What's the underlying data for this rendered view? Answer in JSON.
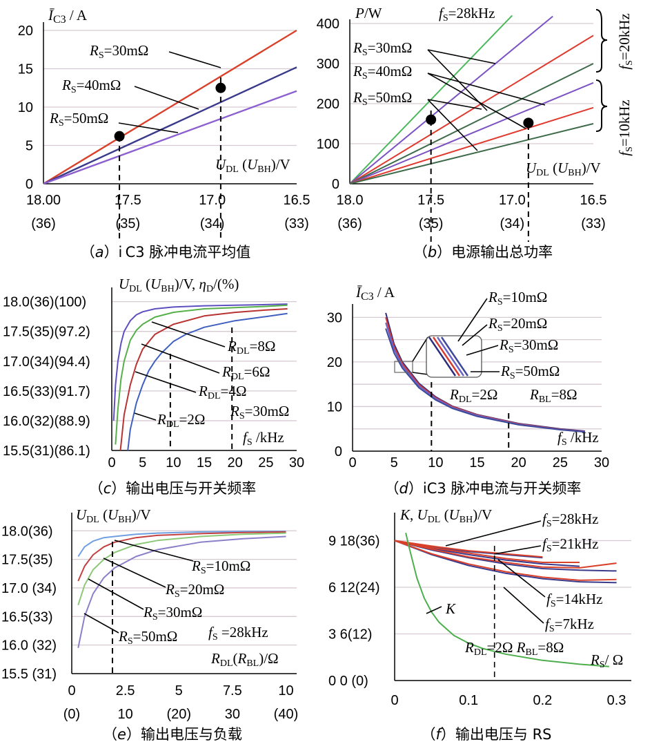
{
  "panels": [
    {
      "id": "a",
      "caption_letter": "a",
      "caption_text": "i C3 脉冲电流平均值",
      "ylabel": "Ī C3 / A",
      "xlabel": "UDL (UBH)/V",
      "xticks": [
        "18.00",
        "17.5",
        "17.0",
        "16.5"
      ],
      "xticks2": [
        "(36)",
        "(35)",
        "(34)",
        "(33)"
      ],
      "yticks": [
        "0",
        "5",
        "10",
        "15",
        "20"
      ],
      "annotations": [
        "RS=30mΩ",
        "RS=40mΩ",
        "RS=50mΩ"
      ]
    },
    {
      "id": "b",
      "caption_letter": "b",
      "caption_text": "电源输出总功率",
      "ylabel": "P/W",
      "xlabel": "UDL (UBH)/V",
      "xticks": [
        "18.0",
        "17.5",
        "17.0",
        "16.5"
      ],
      "xticks2": [
        "(36)",
        "(35)",
        "(34)",
        "(33)"
      ],
      "yticks": [
        "0",
        "100",
        "200",
        "300",
        "400"
      ],
      "annotations": [
        "fS=28kHz",
        "RS=30mΩ",
        "RS=40mΩ",
        "RS=50mΩ",
        "fS=20kHz",
        "fS=10kHz"
      ]
    },
    {
      "id": "c",
      "caption_letter": "c",
      "caption_text": "输出电压与开关频率",
      "ylabel": "UDL (UBH)/V, ηD/(%)",
      "xlabel": "fS /kHz",
      "xticks": [
        "0",
        "5",
        "10",
        "15",
        "20",
        "25",
        "30"
      ],
      "yticks": [
        "15.5(31)(86.1)",
        "16.0(32)(88.9)",
        "16.5(33)(91.7)",
        "17.0(34)(94.4)",
        "17.5(35)(97.2)",
        "18.0(36)(100)"
      ],
      "annotations": [
        "RDL=8Ω",
        "RDL=6Ω",
        "RDL=4Ω",
        "RDL=2Ω",
        "RS=30mΩ"
      ]
    },
    {
      "id": "d",
      "caption_letter": "d",
      "caption_text": "iC3 脉冲电流与开关频率",
      "ylabel": "Ī C3 / A",
      "xlabel": "fS /kHz",
      "xticks": [
        "0",
        "5",
        "10",
        "15",
        "20",
        "25",
        "30"
      ],
      "yticks": [
        "0",
        "10",
        "20",
        "30"
      ],
      "annotations": [
        "RS=10mΩ",
        "RS=20mΩ",
        "RS=30mΩ",
        "RS=50mΩ",
        "RDL=2Ω",
        "RBL=8Ω"
      ]
    },
    {
      "id": "e",
      "caption_letter": "e",
      "caption_text": "输出电压与负载",
      "ylabel": "UDL (UBH)/V",
      "xlabel": "RDL (RBL)/Ω",
      "xticks": [
        "0",
        "2.5",
        "5",
        "7.5",
        "10"
      ],
      "xticks2": [
        "(0)",
        "10",
        "(20)",
        "30",
        "(40)"
      ],
      "yticks": [
        "15.5 (31)",
        "16.0 (32)",
        "16.5(33)",
        "17.0 (34)",
        "17.5(35)",
        "18.0(36)"
      ],
      "annotations": [
        "RS=10mΩ",
        "RS=20mΩ",
        "RS=30mΩ",
        "RS=50mΩ",
        "fS =28kHz"
      ]
    },
    {
      "id": "f",
      "caption_letter": "f",
      "caption_text": "输出电压与 RS",
      "ylabel": "K, UDL (UBH)/V",
      "xlabel": "RS / Ω",
      "xticks": [
        "0",
        "0.1",
        "0.2",
        "0.3"
      ],
      "yticks": [
        "0 0 (0)",
        "3   6(12)",
        "6 12(24)",
        "9 18(36)"
      ],
      "annotations": [
        "fS=28kHz",
        "fS=21kHz",
        "fS=14kHz",
        "fS=7kHz",
        "K",
        "RDL=2Ω RBL=8Ω"
      ]
    }
  ],
  "chart_data": [
    {
      "panel": "a",
      "type": "line",
      "xlabel": "UDL(UBH)/V",
      "ylabel": "ĪC3/A",
      "xlim": [
        18.0,
        16.5
      ],
      "ylim": [
        0,
        20
      ],
      "grid": true,
      "series": [
        {
          "name": "RS=30mΩ",
          "color": "#d9412b",
          "x": [
            18.0,
            16.5
          ],
          "y": [
            0,
            20
          ]
        },
        {
          "name": "RS=40mΩ",
          "color": "#3a3a8c",
          "x": [
            18.0,
            16.5
          ],
          "y": [
            0,
            15.2
          ]
        },
        {
          "name": "RS=50mΩ",
          "color": "#8c5fd0",
          "x": [
            18.0,
            16.5
          ],
          "y": [
            0,
            12.1
          ]
        }
      ],
      "markers": [
        {
          "x": 17.55,
          "y": 6.2
        },
        {
          "x": 16.95,
          "y": 12.5
        }
      ]
    },
    {
      "panel": "b",
      "type": "line",
      "xlabel": "UDL(UBH)/V",
      "ylabel": "P/W",
      "xlim": [
        18.0,
        16.5
      ],
      "ylim": [
        0,
        400
      ],
      "grid": true,
      "series": [
        {
          "name": "fS=28kHz",
          "color": "#4cb85c",
          "x": [
            18.0,
            17.0
          ],
          "y": [
            0,
            420
          ]
        },
        {
          "name": "fS=20kHz RS=30mΩ",
          "color": "#7b52c2",
          "x": [
            18.0,
            16.75
          ],
          "y": [
            0,
            418
          ]
        },
        {
          "name": "fS=20kHz RS=40mΩ",
          "color": "#e03a2f",
          "x": [
            18.0,
            16.5
          ],
          "y": [
            0,
            370
          ]
        },
        {
          "name": "fS=20kHz RS=50mΩ",
          "color": "#3d6b4a",
          "x": [
            18.0,
            16.5
          ],
          "y": [
            0,
            300
          ]
        },
        {
          "name": "fS=10kHz RS=30mΩ",
          "color": "#7b52c2",
          "x": [
            18.0,
            16.5
          ],
          "y": [
            0,
            252
          ]
        },
        {
          "name": "fS=10kHz RS=40mΩ",
          "color": "#e03a2f",
          "x": [
            18.0,
            16.5
          ],
          "y": [
            0,
            190
          ]
        },
        {
          "name": "fS=10kHz RS=50mΩ",
          "color": "#3d6b4a",
          "x": [
            18.0,
            16.5
          ],
          "y": [
            0,
            150
          ]
        }
      ],
      "markers": [
        {
          "x": 17.5,
          "y": 160
        },
        {
          "x": 16.9,
          "y": 152
        }
      ]
    },
    {
      "panel": "c",
      "type": "line",
      "xlabel": "fS/kHz",
      "ylabel": "UDL(UBH)/V, ηD/(%)",
      "xlim": [
        0,
        30
      ],
      "ylim": [
        15.5,
        18.1
      ],
      "grid": true,
      "series": [
        {
          "name": "RDL=8Ω",
          "color": "#5b4fc0",
          "x": [
            0.3,
            0.6,
            1,
            1.5,
            2,
            3,
            4,
            5,
            7,
            10,
            15,
            20,
            25,
            28.5
          ],
          "y": [
            16.0,
            16.6,
            17.0,
            17.3,
            17.5,
            17.68,
            17.78,
            17.83,
            17.88,
            17.91,
            17.93,
            17.94,
            17.95,
            17.96
          ]
        },
        {
          "name": "RDL=6Ω",
          "color": "#55b04a",
          "x": [
            0.6,
            1,
            1.5,
            2,
            3,
            4,
            5,
            7,
            10,
            15,
            20,
            25,
            28.5
          ],
          "y": [
            15.6,
            16.2,
            16.7,
            17.0,
            17.35,
            17.52,
            17.62,
            17.74,
            17.82,
            17.88,
            17.9,
            17.92,
            17.94
          ]
        },
        {
          "name": "RDL=4Ω",
          "color": "#b83232",
          "x": [
            1.4,
            2,
            3,
            4,
            5,
            7,
            10,
            15,
            20,
            25,
            28.5
          ],
          "y": [
            15.5,
            16.1,
            16.6,
            16.95,
            17.2,
            17.45,
            17.62,
            17.76,
            17.82,
            17.86,
            17.88
          ]
        },
        {
          "name": "RDL=2Ω",
          "color": "#3f5fc0",
          "x": [
            2.6,
            3,
            4,
            5,
            6,
            7,
            8,
            10,
            12,
            15,
            20,
            25,
            28.5
          ],
          "y": [
            15.5,
            15.85,
            16.3,
            16.6,
            16.84,
            17.0,
            17.13,
            17.33,
            17.45,
            17.57,
            17.68,
            17.75,
            17.8
          ]
        }
      ]
    },
    {
      "panel": "d",
      "type": "line",
      "xlabel": "fS/kHz",
      "ylabel": "ĪC3/A",
      "xlim": [
        0,
        30
      ],
      "ylim": [
        0,
        33
      ],
      "grid": true,
      "series": [
        {
          "name": "RS=10mΩ",
          "color": "#2d2d80",
          "x": [
            4,
            5,
            6,
            8,
            10,
            12,
            15,
            20,
            25,
            28
          ],
          "y": [
            31,
            24,
            20,
            15.2,
            12.2,
            10.1,
            8.2,
            6.2,
            5.0,
            4.5
          ]
        },
        {
          "name": "RS=20mΩ",
          "color": "#d93b30",
          "x": [
            4,
            5,
            6,
            8,
            10,
            12,
            15,
            20,
            25,
            28
          ],
          "y": [
            30,
            23.4,
            19.6,
            14.9,
            12.0,
            10.0,
            8.1,
            6.1,
            4.9,
            4.4
          ]
        },
        {
          "name": "RS=30mΩ",
          "color": "#6b63c8",
          "x": [
            4,
            5,
            6,
            8,
            10,
            12,
            15,
            20,
            25,
            28
          ],
          "y": [
            28.8,
            22.8,
            19.1,
            14.6,
            11.8,
            9.8,
            8.0,
            6.0,
            4.85,
            4.35
          ]
        },
        {
          "name": "RS=50mΩ",
          "color": "#3d4a9a",
          "x": [
            4,
            5,
            6,
            8,
            10,
            12,
            15,
            20,
            25,
            28
          ],
          "y": [
            27.5,
            22.0,
            18.6,
            14.2,
            11.5,
            9.6,
            7.8,
            5.9,
            4.8,
            4.3
          ]
        }
      ]
    },
    {
      "panel": "e",
      "type": "line",
      "xlabel": "RDL(RBL)/Ω",
      "ylabel": "UDL(UBH)/V",
      "xlim": [
        0,
        10.5
      ],
      "ylim": [
        15.5,
        18.1
      ],
      "grid": true,
      "series": [
        {
          "name": "RS=10mΩ",
          "color": "#6f9fe0",
          "x": [
            0.3,
            0.6,
            1,
            1.5,
            2,
            3,
            4,
            6,
            8,
            10
          ],
          "y": [
            17.55,
            17.72,
            17.82,
            17.88,
            17.9,
            17.94,
            17.96,
            17.98,
            17.99,
            17.99
          ]
        },
        {
          "name": "RS=20mΩ",
          "color": "#c24040",
          "x": [
            0.3,
            0.6,
            1,
            1.5,
            2,
            3,
            4,
            6,
            8,
            10
          ],
          "y": [
            17.12,
            17.38,
            17.58,
            17.72,
            17.8,
            17.88,
            17.92,
            17.95,
            17.97,
            17.98
          ]
        },
        {
          "name": "RS=30mΩ",
          "color": "#8cc878",
          "x": [
            0.3,
            0.6,
            1,
            1.5,
            2,
            3,
            4,
            6,
            8,
            10
          ],
          "y": [
            16.7,
            17.05,
            17.32,
            17.5,
            17.62,
            17.76,
            17.83,
            17.9,
            17.94,
            17.96
          ]
        },
        {
          "name": "RS=50mΩ",
          "color": "#8a7fc8",
          "x": [
            0.3,
            0.6,
            1,
            1.5,
            2,
            3,
            4,
            6,
            8,
            10
          ],
          "y": [
            15.95,
            16.5,
            16.9,
            17.18,
            17.35,
            17.55,
            17.67,
            17.8,
            17.86,
            17.9
          ]
        }
      ]
    },
    {
      "panel": "f",
      "type": "line",
      "xlabel": "RS/Ω",
      "ylabel": "K, UDL(UBH)/V",
      "xlim": [
        0,
        0.32
      ],
      "ylim": [
        0,
        10
      ],
      "grid": true,
      "series": [
        {
          "name": "fS=28kHz UDL",
          "color": "#3a3a8c",
          "x": [
            0,
            0.05,
            0.1,
            0.15,
            0.2
          ],
          "y": [
            9.0,
            8.6,
            8.3,
            8.1,
            7.9
          ]
        },
        {
          "name": "fS=28kHz ηD",
          "color": "#d9412b",
          "x": [
            0,
            0.05,
            0.1,
            0.15,
            0.2
          ],
          "y": [
            9.0,
            8.65,
            8.35,
            8.15,
            7.95
          ]
        },
        {
          "name": "fS=21kHz UDL",
          "color": "#3a3a8c",
          "x": [
            0,
            0.05,
            0.1,
            0.15,
            0.2,
            0.25
          ],
          "y": [
            9.0,
            8.5,
            8.1,
            7.75,
            7.5,
            7.35
          ]
        },
        {
          "name": "fS=21kHz ηD",
          "color": "#d9412b",
          "x": [
            0,
            0.05,
            0.1,
            0.15,
            0.2,
            0.25
          ],
          "y": [
            9.0,
            8.55,
            8.2,
            7.85,
            7.6,
            7.6
          ]
        },
        {
          "name": "fS=14kHz UDL",
          "color": "#3a3a8c",
          "x": [
            0,
            0.05,
            0.1,
            0.15,
            0.2,
            0.25,
            0.3
          ],
          "y": [
            9.0,
            8.4,
            7.9,
            7.5,
            7.2,
            7.1,
            7.05
          ]
        },
        {
          "name": "fS=14kHz ηD",
          "color": "#d9412b",
          "x": [
            0,
            0.05,
            0.1,
            0.15,
            0.2,
            0.25,
            0.3
          ],
          "y": [
            9.0,
            8.45,
            7.95,
            7.6,
            7.3,
            7.25,
            7.55
          ]
        },
        {
          "name": "fS=7kHz UDL",
          "color": "#3a3a8c",
          "x": [
            0,
            0.05,
            0.1,
            0.15,
            0.2,
            0.25,
            0.3
          ],
          "y": [
            9.0,
            8.1,
            7.4,
            6.9,
            6.55,
            6.35,
            6.3
          ]
        },
        {
          "name": "fS=7kHz ηD",
          "color": "#d9412b",
          "x": [
            0,
            0.05,
            0.1,
            0.15,
            0.2,
            0.25,
            0.3
          ],
          "y": [
            9.0,
            8.15,
            7.5,
            7.0,
            6.65,
            6.45,
            6.5
          ]
        },
        {
          "name": "K",
          "color": "#4cae4c",
          "x": [
            0.015,
            0.02,
            0.03,
            0.04,
            0.05,
            0.06,
            0.08,
            0.1,
            0.12,
            0.15,
            0.2,
            0.25,
            0.29
          ],
          "y": [
            9.5,
            8.5,
            6.6,
            5.3,
            4.4,
            3.75,
            2.9,
            2.4,
            2.05,
            1.7,
            1.3,
            1.05,
            0.9
          ]
        }
      ]
    }
  ]
}
